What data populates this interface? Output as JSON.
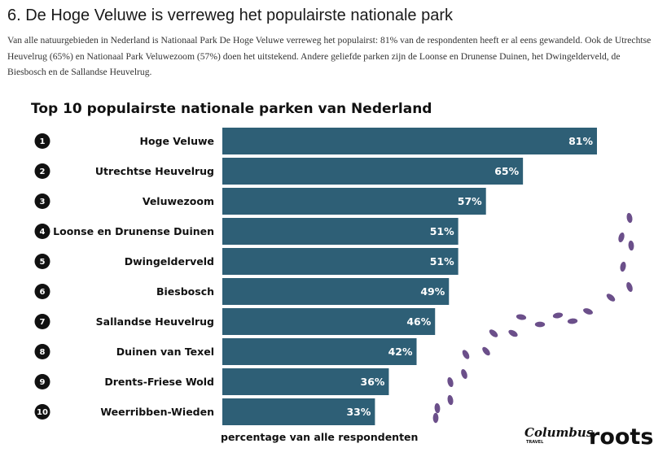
{
  "article": {
    "title": "6. De Hoge Veluwe is verreweg het populairste nationale park",
    "intro": "Van alle natuurgebieden in Nederland is Nationaal Park De Hoge Veluwe verreweg het populairst: 81% van de respondenten heeft er al eens gewandeld. Ook de Utrechtse Heuvelrug (65%) en Nationaal Park Veluwezoom (57%) doen het uitstekend. Andere geliefde parken zijn de Loonse en Drunense Duinen, het Dwingelderveld, de Biesbosch en de Sallandse Heuvelrug."
  },
  "chart_data": {
    "type": "bar",
    "orientation": "horizontal",
    "title": "Top 10 populairste nationale parken van Nederland",
    "xlabel": "percentage van alle respondenten",
    "ylabel": "",
    "ranks": [
      "1",
      "2",
      "3",
      "4",
      "5",
      "6",
      "7",
      "8",
      "9",
      "10"
    ],
    "categories": [
      "Hoge Veluwe",
      "Utrechtse Heuvelrug",
      "Veluwezoom",
      "Loonse en Drunense Duinen",
      "Dwingelderveld",
      "Biesbosch",
      "Sallandse Heuvelrug",
      "Duinen van Texel",
      "Drents-Friese Wold",
      "Weerribben-Wieden"
    ],
    "values": [
      81,
      65,
      57,
      51,
      51,
      49,
      46,
      42,
      36,
      33
    ],
    "value_labels": [
      "81%",
      "65%",
      "57%",
      "51%",
      "51%",
      "49%",
      "46%",
      "42%",
      "36%",
      "33%"
    ],
    "unit": "%",
    "xlim": [
      0,
      81
    ],
    "bar_color": "#2e5f76",
    "grid": false,
    "legend": "none"
  },
  "decoration": {
    "footprints_color": "#6b4f8a",
    "footprints_icon": "footprints-trail"
  },
  "logos": {
    "columbus": "Columbus",
    "columbus_sub": "TRAVEL",
    "roots": "roots"
  }
}
